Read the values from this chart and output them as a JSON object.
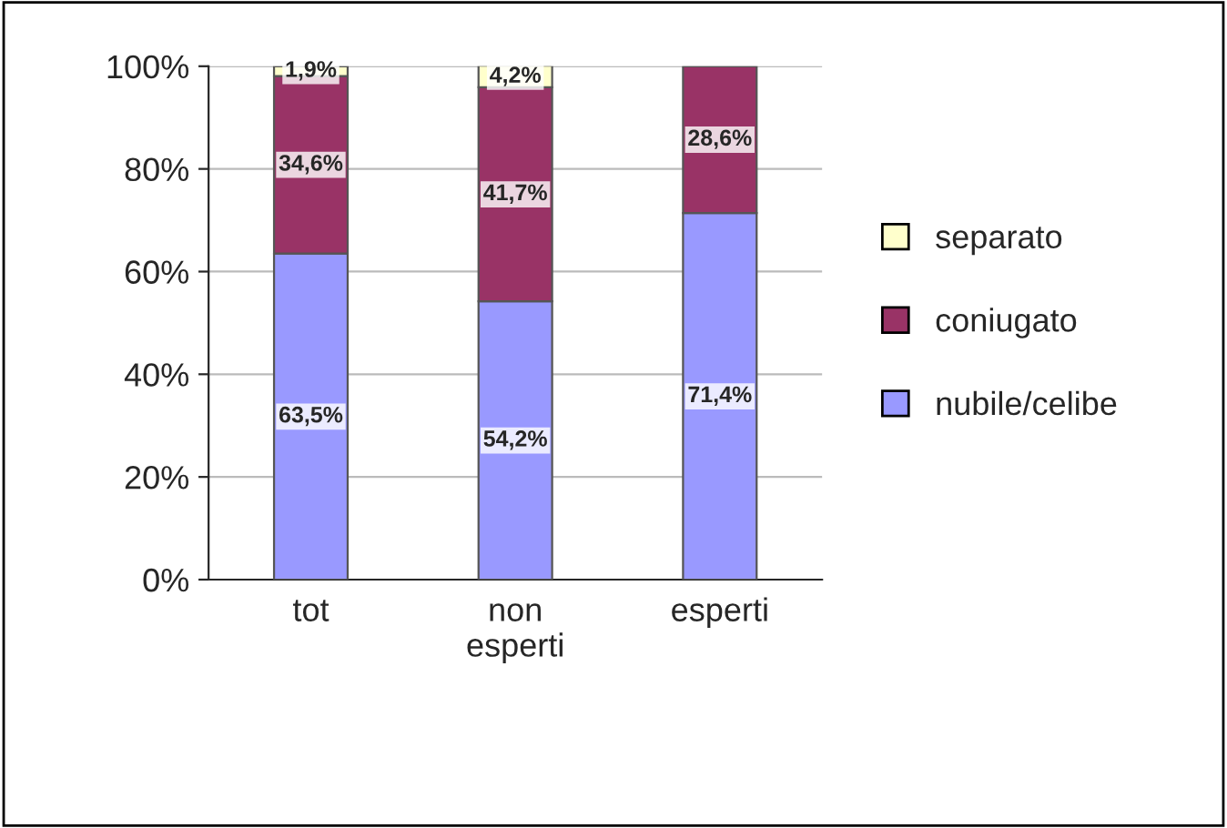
{
  "chart_data": {
    "type": "bar",
    "stacked": true,
    "categories": [
      "tot",
      "non\nesperti",
      "esperti"
    ],
    "series": [
      {
        "name": "nubile/celibe",
        "color": "#9999ff",
        "values": [
          63.5,
          54.2,
          71.4
        ],
        "value_labels": [
          "63,5%",
          "54,2%",
          "71,4%"
        ]
      },
      {
        "name": "coniugato",
        "color": "#993366",
        "values": [
          34.6,
          41.7,
          28.6
        ],
        "value_labels": [
          "34,6%",
          "41,7%",
          "28,6%"
        ]
      },
      {
        "name": "separato",
        "color": "#ffffcc",
        "values": [
          1.9,
          4.2,
          null
        ],
        "value_labels": [
          "1,9%",
          "4,2%",
          null
        ]
      }
    ],
    "ylim": [
      0,
      100
    ],
    "yticks": [
      {
        "value": 0,
        "label": "0%"
      },
      {
        "value": 20,
        "label": "20%"
      },
      {
        "value": 40,
        "label": "40%"
      },
      {
        "value": 60,
        "label": "60%"
      },
      {
        "value": 80,
        "label": "80%"
      },
      {
        "value": 100,
        "label": "100%"
      }
    ],
    "grid": "y",
    "legend": "right"
  }
}
